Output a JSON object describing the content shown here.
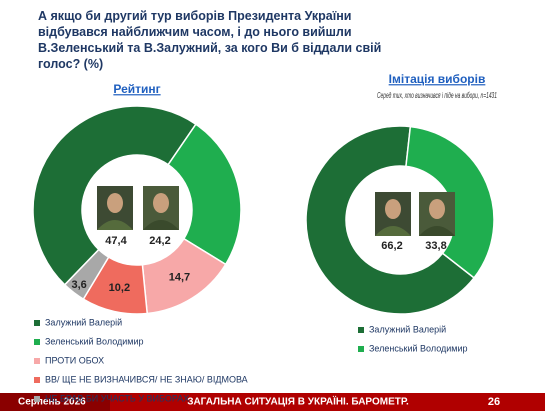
{
  "title": "А якщо би другий тур виборів Президента України відбувався найближчим часом, і до нього вийшли В.Зеленський та В.Залужний, за кого Ви б віддали свій голос? (%)",
  "chart_data": [
    {
      "type": "donut",
      "title": "Рейтинг",
      "categories": [
        "Залужний Валерій",
        "Зеленський Володимир",
        "ПРОТИ ОБОХ",
        "ВВ/ ЩЕ НЕ ВИЗНАЧИВСЯ/ НЕ ЗНАЮ/ ВІДМОВА",
        "НЕ БРАВ БИ УЧАСТЬ У ВИБОРАХ"
      ],
      "values": [
        47.4,
        24.2,
        14.7,
        10.2,
        3.6
      ],
      "value_labels": [
        "47,4",
        "24,2",
        "14,7",
        "10,2",
        "3,6"
      ],
      "colors": [
        "#1d6e36",
        "#1fae4f",
        "#f7a8a8",
        "#ef6b5e",
        "#a8a8a8"
      ]
    },
    {
      "type": "donut",
      "title": "Імітація виборів",
      "subtitle": "Серед тих, хто визначився і піде на вибори, n=1431",
      "categories": [
        "Залужний Валерій",
        "Зеленський Володимир"
      ],
      "values": [
        66.2,
        33.8
      ],
      "value_labels": [
        "66,2",
        "33,8"
      ],
      "colors": [
        "#1d6e36",
        "#1fae4f"
      ]
    }
  ],
  "footer": {
    "date": "Серпень 2026",
    "text": "ЗАГАЛЬНА СИТУАЦІЯ В УКРАЇНІ. БАРОМЕТР.",
    "page": "26"
  }
}
